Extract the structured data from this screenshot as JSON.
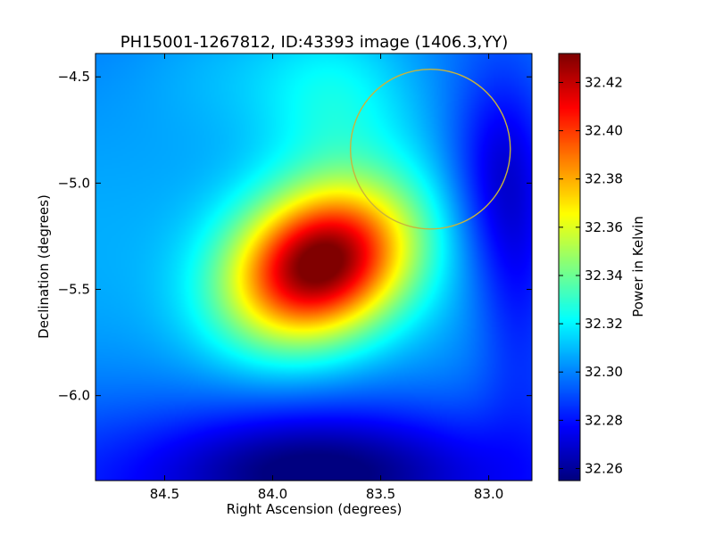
{
  "chart_data": {
    "type": "heatmap",
    "title": "PH15001-1267812, ID:43393 image (1406.3,YY)",
    "xlabel": "Right Ascension (degrees)",
    "ylabel": "Declination (degrees)",
    "colorbar_label": "Power in Kelvin",
    "colormap": "jet",
    "x_range": [
      84.82,
      82.8
    ],
    "y_range": [
      -6.4,
      -4.39
    ],
    "x_ticks": [
      84.5,
      84.0,
      83.5,
      83.0
    ],
    "x_tick_labels": [
      "84.5",
      "84.0",
      "83.5",
      "83.0"
    ],
    "y_ticks": [
      -4.5,
      -5.0,
      -5.5,
      -6.0
    ],
    "y_tick_labels": [
      "−4.5",
      "−5.0",
      "−5.5",
      "−6.0"
    ],
    "color_range": [
      32.255,
      32.432
    ],
    "colorbar_ticks": [
      32.26,
      32.28,
      32.3,
      32.32,
      32.34,
      32.36,
      32.38,
      32.4,
      32.42
    ],
    "colorbar_tick_labels": [
      "32.26",
      "32.28",
      "32.30",
      "32.32",
      "32.34",
      "32.36",
      "32.38",
      "32.40",
      "32.42"
    ],
    "peak": {
      "ra": 83.78,
      "dec": -5.38,
      "value": 32.432
    },
    "circle": {
      "center_ra": 83.27,
      "center_dec": -4.84,
      "radius_deg": 0.37,
      "color": "#c8b43c"
    }
  }
}
